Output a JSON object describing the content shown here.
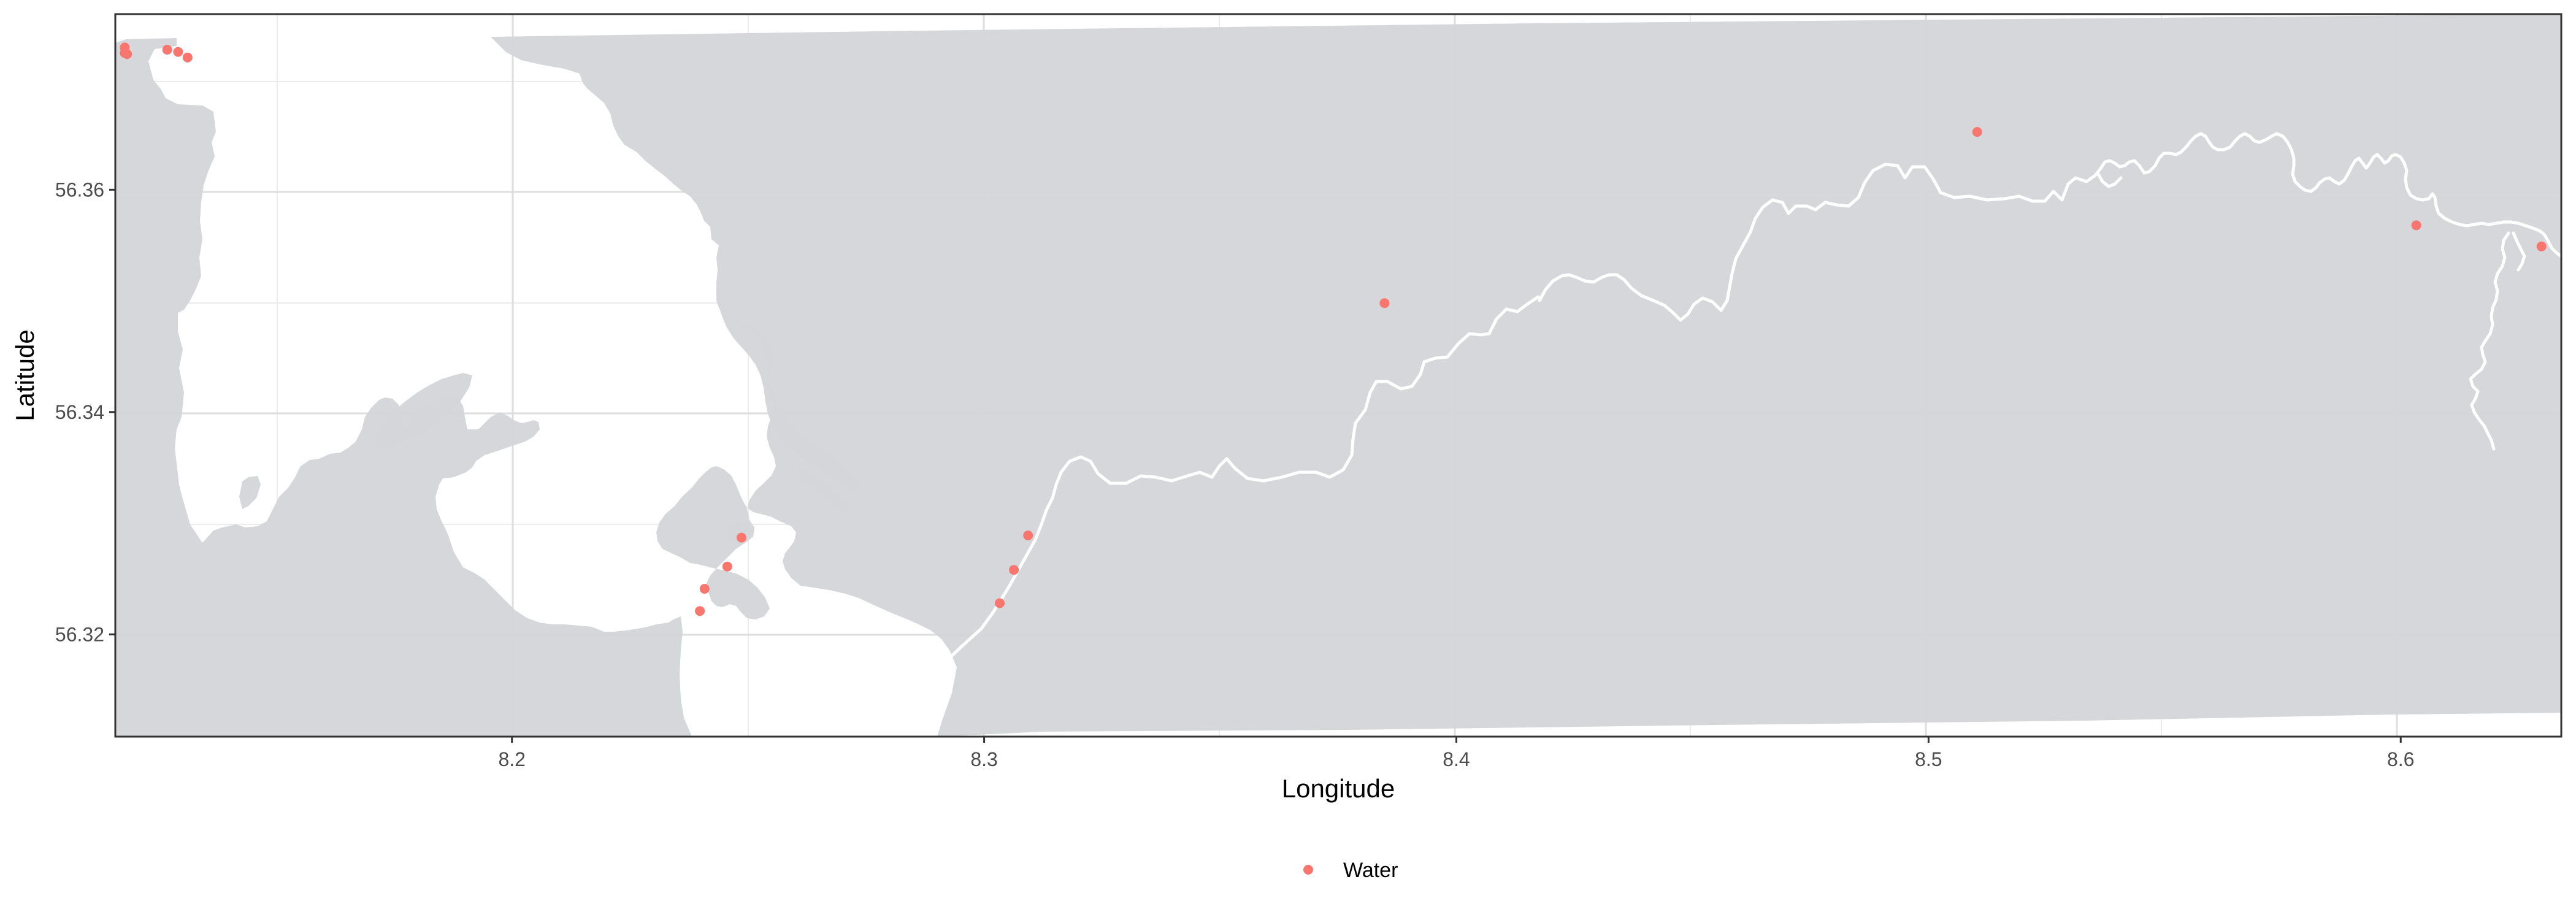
{
  "chart_data": {
    "type": "scatter",
    "xlabel": "Longitude",
    "ylabel": "Latitude",
    "xlim": [
      8.116,
      8.634
    ],
    "ylim": [
      56.3108,
      56.3758
    ],
    "x_ticks": [
      {
        "value": 8.2,
        "label": "8.2"
      },
      {
        "value": 8.3,
        "label": "8.3"
      },
      {
        "value": 8.4,
        "label": "8.4"
      },
      {
        "value": 8.5,
        "label": "8.5"
      },
      {
        "value": 8.6,
        "label": "8.6"
      }
    ],
    "y_ticks": [
      {
        "value": 56.32,
        "label": "56.32"
      },
      {
        "value": 56.34,
        "label": "56.34"
      },
      {
        "value": 56.36,
        "label": "56.36"
      }
    ],
    "grid": true,
    "legend_position": "bottom",
    "background_land_color": "#d4d5d8",
    "water_color": "#ffffff",
    "series": [
      {
        "name": "Water",
        "color": "#f8766d",
        "points": [
          {
            "x": 8.118,
            "y": 56.3728
          },
          {
            "x": 8.118,
            "y": 56.3723
          },
          {
            "x": 8.1185,
            "y": 56.3722
          },
          {
            "x": 8.127,
            "y": 56.3726
          },
          {
            "x": 8.1293,
            "y": 56.3724
          },
          {
            "x": 8.1313,
            "y": 56.3719
          },
          {
            "x": 8.2398,
            "y": 56.3221
          },
          {
            "x": 8.2408,
            "y": 56.3241
          },
          {
            "x": 8.2456,
            "y": 56.3261
          },
          {
            "x": 8.2486,
            "y": 56.3287
          },
          {
            "x": 8.3033,
            "y": 56.3228
          },
          {
            "x": 8.3063,
            "y": 56.3258
          },
          {
            "x": 8.3093,
            "y": 56.3289
          },
          {
            "x": 8.3848,
            "y": 56.3498
          },
          {
            "x": 8.5103,
            "y": 56.3652
          },
          {
            "x": 8.6033,
            "y": 56.3568
          },
          {
            "x": 8.6298,
            "y": 56.3549
          }
        ]
      }
    ]
  }
}
